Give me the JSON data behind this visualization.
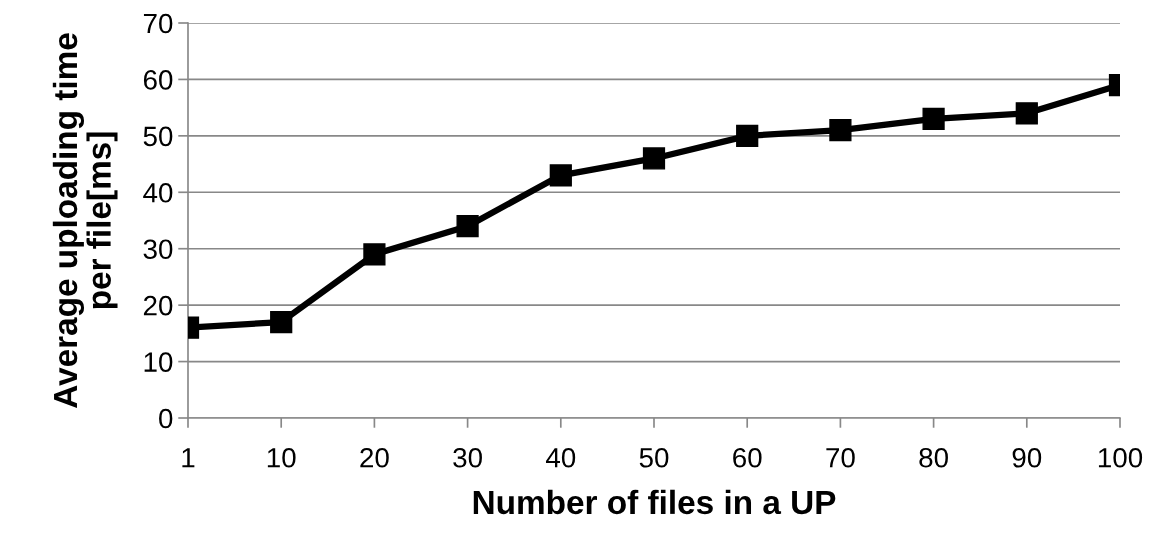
{
  "chart_data": {
    "type": "line",
    "xlabel": "Number of files in a UP",
    "ylabel": "Average uploading time\nper file[ms]",
    "categories": [
      "1",
      "10",
      "20",
      "30",
      "40",
      "50",
      "60",
      "70",
      "80",
      "90",
      "100"
    ],
    "series": [
      {
        "color": "#000000",
        "values": [
          16,
          17,
          29,
          34,
          43,
          46,
          50,
          51,
          53,
          54,
          59
        ]
      }
    ],
    "ylim": [
      0,
      70
    ],
    "yticks": [
      0,
      10,
      20,
      30,
      40,
      50,
      60,
      70
    ],
    "grid": "y",
    "marker": "square",
    "line_style": "solid"
  }
}
